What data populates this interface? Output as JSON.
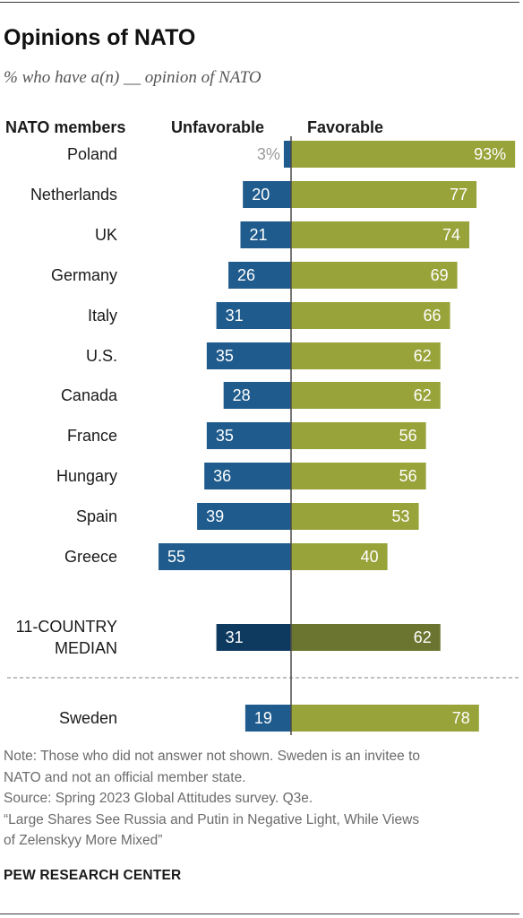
{
  "title": "Opinions of NATO",
  "subtitle": "% who have a(n) __ opinion of NATO",
  "headers": {
    "group": "NATO members",
    "unfavorable": "Unfavorable",
    "favorable": "Favorable"
  },
  "colors": {
    "unfavorable": "#1f5b8c",
    "favorable": "#98a33a",
    "median_unfavorable": "#0f3a5f",
    "median_favorable": "#6b7530",
    "outside_label": "#9a9a9a"
  },
  "chart_data": {
    "type": "bar",
    "orientation": "horizontal-diverging",
    "categories": [
      "Poland",
      "Netherlands",
      "UK",
      "Germany",
      "Italy",
      "U.S.",
      "Canada",
      "France",
      "Hungary",
      "Spain",
      "Greece",
      "11-COUNTRY MEDIAN",
      "Sweden"
    ],
    "series": [
      {
        "name": "Unfavorable",
        "values": [
          3,
          20,
          21,
          26,
          31,
          35,
          28,
          35,
          36,
          39,
          55,
          31,
          19
        ],
        "labels": [
          "3%",
          "20",
          "21",
          "26",
          "31",
          "35",
          "28",
          "35",
          "36",
          "39",
          "55",
          "31",
          "19"
        ]
      },
      {
        "name": "Favorable",
        "values": [
          93,
          77,
          74,
          69,
          66,
          62,
          62,
          56,
          56,
          53,
          40,
          62,
          78
        ],
        "labels": [
          "93%",
          "77",
          "74",
          "69",
          "66",
          "62",
          "62",
          "56",
          "56",
          "53",
          "40",
          "62",
          "78"
        ]
      }
    ]
  },
  "notes": [
    "Note: Those who did not answer not shown. Sweden is an invitee to",
    "NATO and not an official member state.",
    "Source: Spring 2023 Global Attitudes survey. Q3e.",
    "“Large Shares See Russia and Putin in Negative Light, While Views",
    "of Zelenskyy More Mixed”"
  ],
  "brand": "PEW RESEARCH CENTER"
}
